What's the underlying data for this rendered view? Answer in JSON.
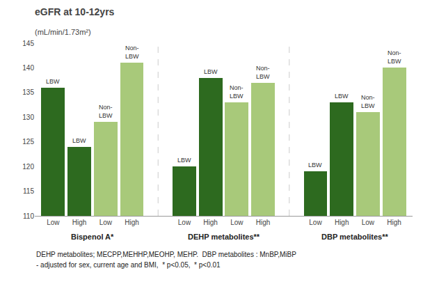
{
  "chart_data": {
    "type": "bar",
    "title": "eGFR at 10-12yrs",
    "subtitle": "(mL/min/1.73m²)",
    "groups": [
      "Bispenol A*",
      "DEHP metabolites**",
      "DBP metabolites**"
    ],
    "categories": [
      "Low",
      "High",
      "Low",
      "High",
      "Low",
      "High",
      "Low",
      "High",
      "Low",
      "High",
      "Low",
      "High"
    ],
    "values": [
      136,
      124,
      129,
      141,
      120,
      138,
      133,
      137,
      119,
      133,
      131,
      140
    ],
    "colors": [
      "#2d6a1f",
      "#2d6a1f",
      "#a8c97a",
      "#a8c97a",
      "#2d6a1f",
      "#2d6a1f",
      "#a8c97a",
      "#a8c97a",
      "#2d6a1f",
      "#2d6a1f",
      "#a8c97a",
      "#a8c97a"
    ],
    "bar_labels": [
      "LBW",
      "LBW",
      "Non-\nLBW",
      "Non-\nLBW",
      "LBW",
      "LBW",
      "Non-\nLBW",
      "Non-\nLBW",
      "LBW",
      "LBW",
      "Non-\nLBW",
      "Non-\nLBW"
    ],
    "footnotes": [
      "DEHP metabolites; MECPP,MEHHP,MEOHP, MEHP.  DBP metabolites : MnBP,MiBP",
      "- adjusted for sex, current age and BMI,  * p<0.05,  * p<0.01"
    ],
    "ylim": [
      110,
      145
    ],
    "yticks": [
      110,
      115,
      120,
      125,
      130,
      135,
      140,
      145
    ],
    "grid": false
  }
}
